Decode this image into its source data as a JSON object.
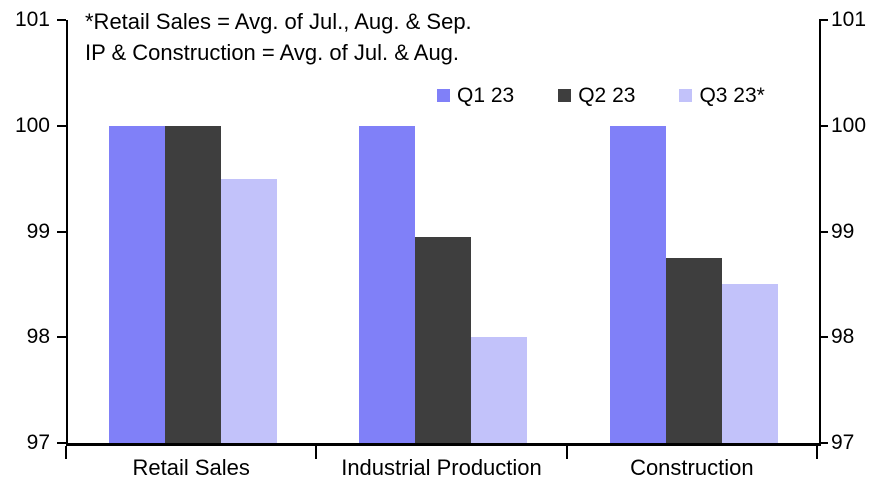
{
  "annotation": {
    "line1": "*Retail Sales = Avg. of Jul., Aug. & Sep.",
    "line2": "IP & Construction = Avg. of Jul. & Aug."
  },
  "legend": {
    "items": [
      {
        "label": "Q1 23",
        "color": "#8080F8"
      },
      {
        "label": "Q2 23",
        "color": "#3E3E3E",
        "pattern": "speckle"
      },
      {
        "label": "Q3 23*",
        "color": "#C2C2FA"
      }
    ]
  },
  "chart_data": {
    "type": "bar",
    "title": "",
    "categories": [
      "Retail Sales",
      "Industrial Production",
      "Construction"
    ],
    "series": [
      {
        "name": "Q1 23",
        "color": "#8080F8",
        "values": [
          100,
          100,
          100
        ]
      },
      {
        "name": "Q2 23",
        "color": "#3E3E3E",
        "pattern": "speckle",
        "values": [
          100,
          98.95,
          98.75
        ]
      },
      {
        "name": "Q3 23*",
        "color": "#C2C2FA",
        "values": [
          99.5,
          98.0,
          98.5
        ]
      }
    ],
    "ylim": [
      97,
      101
    ],
    "yticks": [
      101,
      100,
      99,
      98,
      97
    ],
    "y_axis_sides": [
      "left",
      "right"
    ],
    "axis_color": "#000000",
    "background_color": "#FFFFFF",
    "grid": false,
    "legend_position": "top-right-inside"
  }
}
